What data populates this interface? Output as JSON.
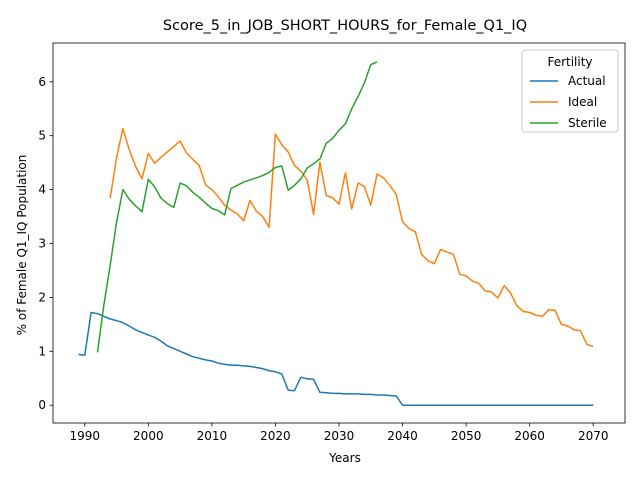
{
  "chart_data": {
    "type": "line",
    "title": "Score_5_in_JOB_SHORT_HOURS_for_Female_Q1_IQ",
    "xlabel": "Years",
    "ylabel": "% of Female Q1_IQ Population",
    "xlim": [
      1985,
      2075
    ],
    "ylim": [
      -0.33,
      6.72
    ],
    "xticks": [
      1990,
      2000,
      2010,
      2020,
      2030,
      2040,
      2050,
      2060,
      2070
    ],
    "yticks": [
      0,
      1,
      2,
      3,
      4,
      5,
      6
    ],
    "grid": false,
    "legend": {
      "title": "Fertility",
      "position": "top-right"
    },
    "series": [
      {
        "name": "Actual",
        "color": "#1f77b4",
        "x": [
          1989,
          1990,
          1991,
          1992,
          1993,
          1994,
          1995,
          1996,
          1997,
          1998,
          1999,
          2000,
          2001,
          2002,
          2003,
          2004,
          2005,
          2006,
          2007,
          2008,
          2009,
          2010,
          2011,
          2012,
          2013,
          2014,
          2015,
          2016,
          2017,
          2018,
          2019,
          2020,
          2021,
          2022,
          2023,
          2024,
          2025,
          2026,
          2027,
          2028,
          2029,
          2030,
          2031,
          2032,
          2033,
          2034,
          2035,
          2036,
          2037,
          2038,
          2039,
          2040,
          2041,
          2042,
          2043,
          2044,
          2045,
          2046,
          2047,
          2048,
          2049,
          2050,
          2051,
          2052,
          2053,
          2054,
          2055,
          2056,
          2057,
          2058,
          2059,
          2060,
          2061,
          2062,
          2063,
          2064,
          2065,
          2066,
          2067,
          2068,
          2069,
          2070
        ],
        "y": [
          0.94,
          0.93,
          1.72,
          1.7,
          1.65,
          1.6,
          1.57,
          1.53,
          1.47,
          1.4,
          1.35,
          1.3,
          1.26,
          1.19,
          1.1,
          1.05,
          1.0,
          0.95,
          0.9,
          0.87,
          0.84,
          0.82,
          0.78,
          0.76,
          0.74,
          0.74,
          0.73,
          0.72,
          0.7,
          0.68,
          0.64,
          0.62,
          0.58,
          0.28,
          0.27,
          0.52,
          0.49,
          0.48,
          0.24,
          0.23,
          0.22,
          0.22,
          0.21,
          0.21,
          0.21,
          0.2,
          0.2,
          0.19,
          0.19,
          0.18,
          0.17,
          0.0,
          0.0,
          0.0,
          0.0,
          0.0,
          0.0,
          0.0,
          0.0,
          0.0,
          0.0,
          0.0,
          0.0,
          0.0,
          0.0,
          0.0,
          0.0,
          0.0,
          0.0,
          0.0,
          0.0,
          0.0,
          0.0,
          0.0,
          0.0,
          0.0,
          0.0,
          0.0,
          0.0,
          0.0,
          0.0,
          0.0
        ]
      },
      {
        "name": "Ideal",
        "color": "#ff7f0e",
        "x": [
          1994,
          1995,
          1996,
          1997,
          1998,
          1999,
          2000,
          2001,
          2002,
          2003,
          2004,
          2005,
          2006,
          2007,
          2008,
          2009,
          2010,
          2011,
          2012,
          2013,
          2014,
          2015,
          2016,
          2017,
          2018,
          2019,
          2020,
          2021,
          2022,
          2023,
          2024,
          2025,
          2026,
          2027,
          2028,
          2029,
          2030,
          2031,
          2032,
          2033,
          2034,
          2035,
          2036,
          2037,
          2038,
          2039,
          2040,
          2041,
          2042,
          2043,
          2044,
          2045,
          2046,
          2047,
          2048,
          2049,
          2050,
          2051,
          2052,
          2053,
          2054,
          2055,
          2056,
          2057,
          2058,
          2059,
          2060,
          2061,
          2062,
          2063,
          2064,
          2065,
          2066,
          2067,
          2068,
          2069,
          2070
        ],
        "y": [
          3.84,
          4.6,
          5.13,
          4.74,
          4.43,
          4.2,
          4.67,
          4.49,
          4.6,
          4.7,
          4.8,
          4.9,
          4.68,
          4.56,
          4.45,
          4.09,
          4.0,
          3.87,
          3.71,
          3.62,
          3.55,
          3.42,
          3.8,
          3.6,
          3.5,
          3.3,
          5.03,
          4.83,
          4.7,
          4.45,
          4.34,
          4.18,
          3.54,
          4.51,
          3.89,
          3.85,
          3.73,
          4.31,
          3.64,
          4.12,
          4.06,
          3.71,
          4.29,
          4.22,
          4.08,
          3.91,
          3.4,
          3.28,
          3.22,
          2.8,
          2.68,
          2.63,
          2.89,
          2.84,
          2.8,
          2.43,
          2.4,
          2.3,
          2.26,
          2.12,
          2.1,
          1.99,
          2.22,
          2.08,
          1.84,
          1.74,
          1.72,
          1.67,
          1.65,
          1.77,
          1.76,
          1.5,
          1.47,
          1.4,
          1.38,
          1.13,
          1.09
        ]
      },
      {
        "name": "Sterile",
        "color": "#2ca02c",
        "x": [
          1992,
          1993,
          1994,
          1995,
          1996,
          1997,
          1998,
          1999,
          2000,
          2001,
          2002,
          2003,
          2004,
          2005,
          2006,
          2007,
          2008,
          2009,
          2010,
          2011,
          2012,
          2013,
          2014,
          2015,
          2016,
          2017,
          2018,
          2019,
          2020,
          2021,
          2022,
          2023,
          2024,
          2025,
          2026,
          2027,
          2028,
          2029,
          2030,
          2031,
          2032,
          2033,
          2034,
          2035,
          2036
        ],
        "y": [
          0.98,
          1.85,
          2.6,
          3.4,
          4.0,
          3.82,
          3.7,
          3.59,
          4.19,
          4.05,
          3.84,
          3.74,
          3.67,
          4.12,
          4.07,
          3.95,
          3.86,
          3.75,
          3.65,
          3.61,
          3.53,
          4.02,
          4.08,
          4.14,
          4.18,
          4.22,
          4.26,
          4.32,
          4.41,
          4.44,
          3.99,
          4.08,
          4.2,
          4.4,
          4.48,
          4.57,
          4.86,
          4.95,
          5.1,
          5.22,
          5.5,
          5.73,
          5.98,
          6.32,
          6.37
        ]
      }
    ]
  }
}
